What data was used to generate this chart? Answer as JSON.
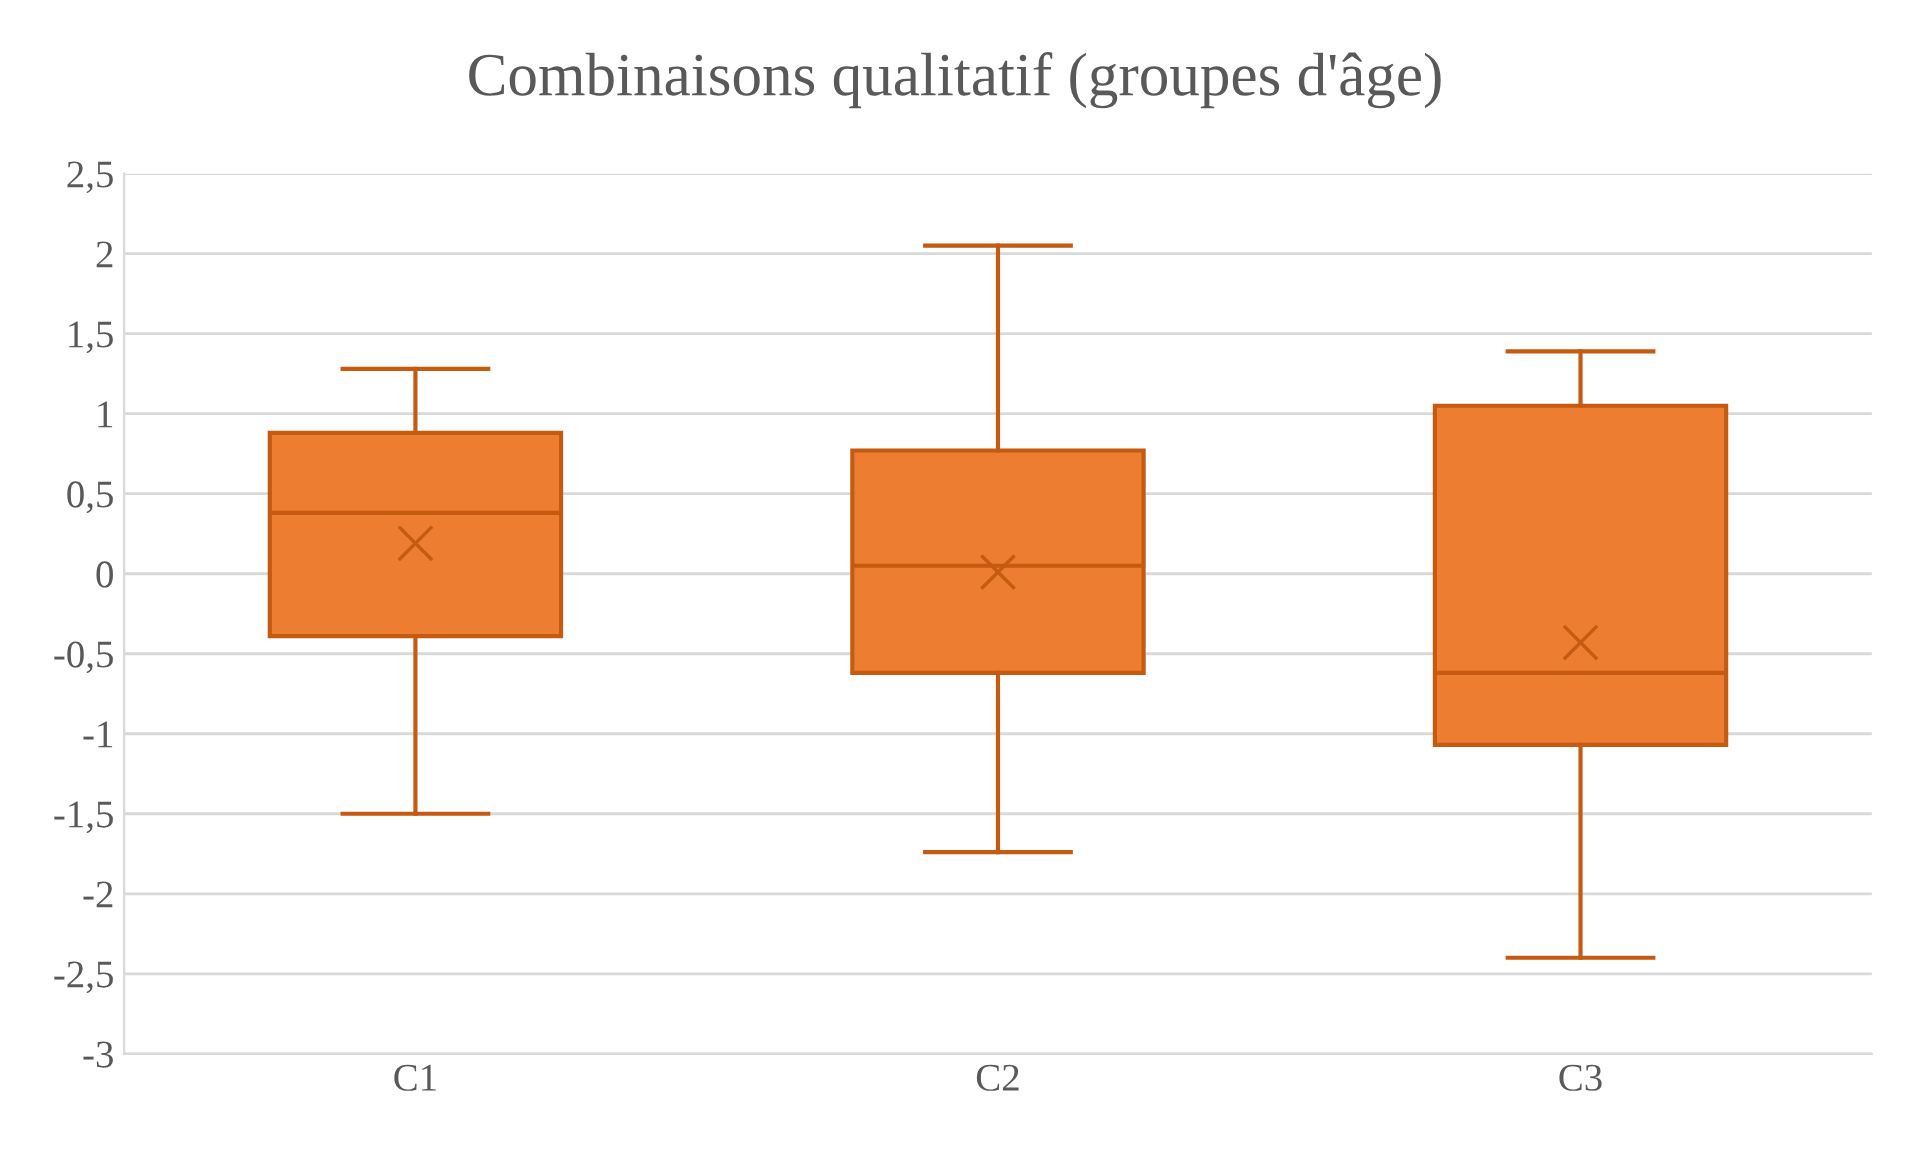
{
  "chart_data": {
    "type": "box",
    "title": "Combinaisons qualitatif (groupes d'âge)",
    "categories": [
      "C1",
      "C2",
      "C3"
    ],
    "boxes": [
      {
        "low": -1.5,
        "q1": -0.39,
        "median": 0.38,
        "q3": 0.88,
        "high": 1.28,
        "mean": 0.19
      },
      {
        "low": -1.74,
        "q1": -0.62,
        "median": 0.05,
        "q3": 0.77,
        "high": 2.05,
        "mean": 0.01
      },
      {
        "low": -2.4,
        "q1": -1.07,
        "median": -0.62,
        "q3": 1.05,
        "high": 1.39,
        "mean": -0.43
      }
    ],
    "color": "#ed7d31",
    "ylim": [
      -3,
      2.5
    ],
    "yticks": [
      {
        "value": -3,
        "label": "-3"
      },
      {
        "value": -2.5,
        "label": "-2,5"
      },
      {
        "value": -2,
        "label": "-2"
      },
      {
        "value": -1.5,
        "label": "-1,5"
      },
      {
        "value": -1,
        "label": "-1"
      },
      {
        "value": -0.5,
        "label": "-0,5"
      },
      {
        "value": 0,
        "label": "0"
      },
      {
        "value": 0.5,
        "label": "0,5"
      },
      {
        "value": 1,
        "label": "1"
      },
      {
        "value": 1.5,
        "label": "1,5"
      },
      {
        "value": 2,
        "label": "2"
      },
      {
        "value": 2.5,
        "label": "2,5"
      }
    ],
    "grid": "y"
  }
}
